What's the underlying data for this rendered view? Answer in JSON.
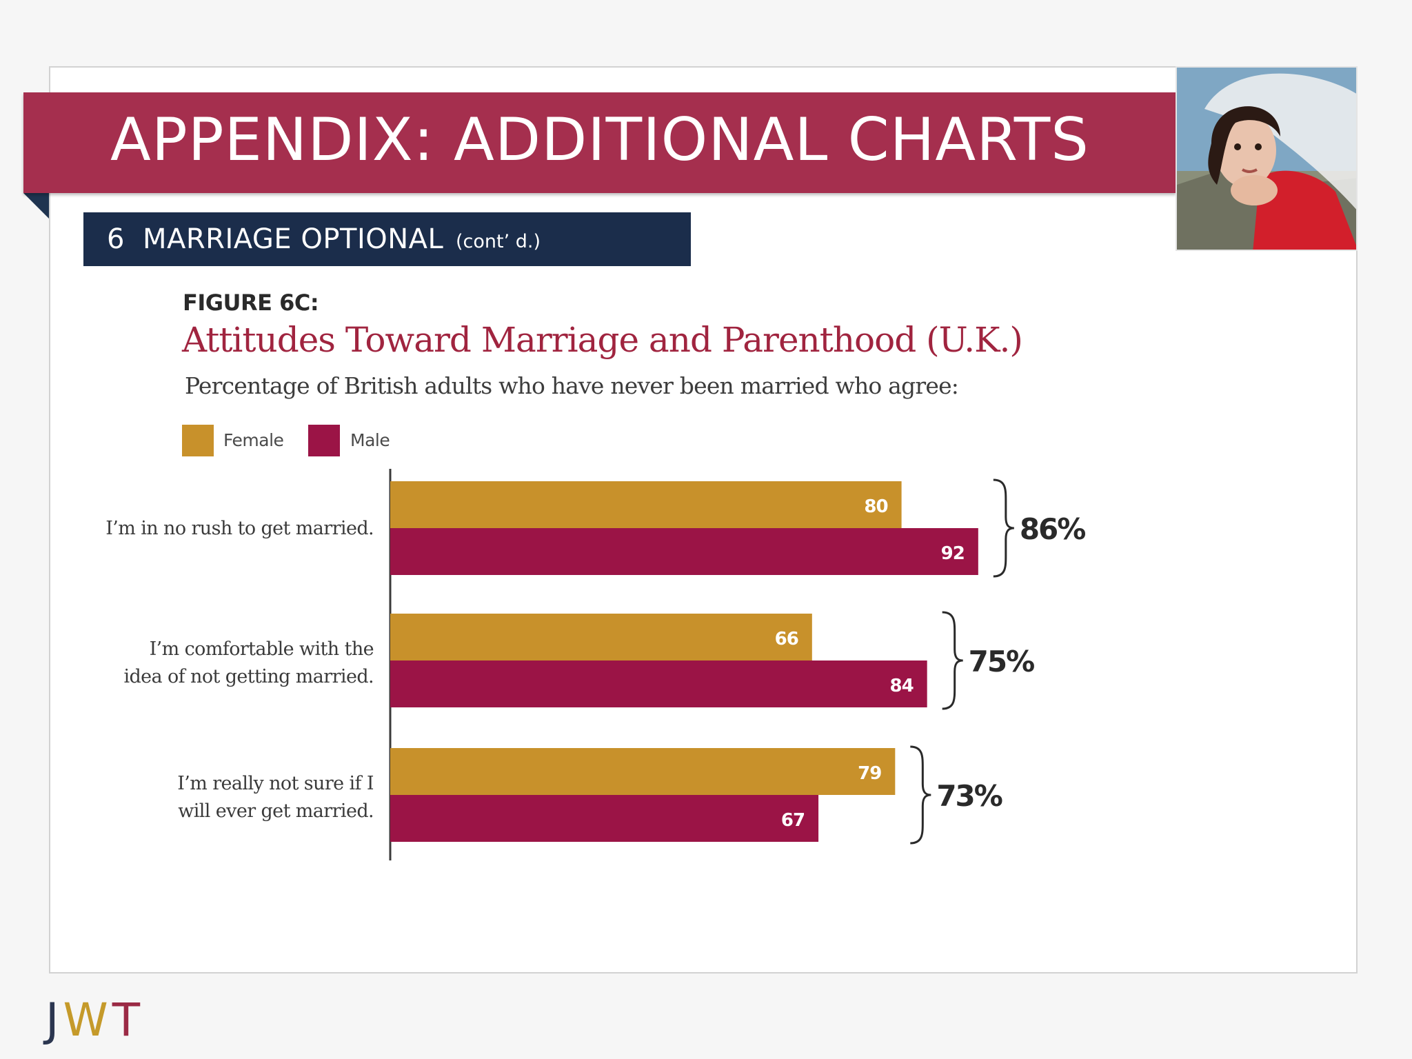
{
  "slide": {
    "title": "APPENDIX: ADDITIONAL CHARTS",
    "section_number": "6",
    "section_title": "MARRIAGE OPTIONAL",
    "section_cont": "(cont’ d.)",
    "logo": {
      "j": "J",
      "w": "W",
      "t": "T"
    }
  },
  "colors": {
    "banner": "#a52f4e",
    "section_bar": "#1b2d4b",
    "female": "#c8912b",
    "male": "#9b1446",
    "title_red": "#a0243f"
  },
  "chart_data": {
    "type": "bar",
    "orientation": "horizontal",
    "figure_label": "FIGURE 6C:",
    "title": "Attitudes Toward Marriage and Parenthood (U.K.)",
    "subtitle": "Percentage of British adults who have never been married who agree:",
    "legend": [
      "Female",
      "Male"
    ],
    "legend_position": "top-left",
    "categories": [
      [
        "I’m in no rush to get married."
      ],
      [
        "I’m comfortable with the",
        "idea of not getting married."
      ],
      [
        "I’m really not sure if I",
        "will ever get married."
      ]
    ],
    "series": [
      {
        "name": "Female",
        "values": [
          80,
          66,
          79
        ]
      },
      {
        "name": "Male",
        "values": [
          92,
          84,
          67
        ]
      }
    ],
    "totals": [
      "86%",
      "75%",
      "73%"
    ],
    "xlim": [
      0,
      100
    ],
    "grid": false
  }
}
